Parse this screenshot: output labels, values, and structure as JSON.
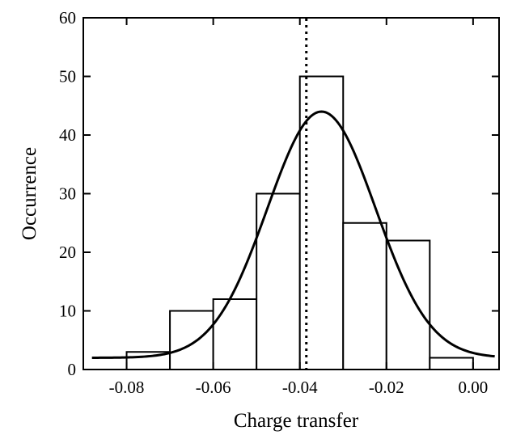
{
  "chart_data": {
    "type": "bar",
    "title": "",
    "xlabel": "Charge transfer",
    "ylabel": "Occurrence",
    "xlim": [
      -0.09,
      0.006
    ],
    "ylim": [
      0,
      60
    ],
    "grid": false,
    "legend": "none",
    "x_ticks": [
      {
        "value": -0.08,
        "label": "-0.08"
      },
      {
        "value": -0.06,
        "label": "-0.06"
      },
      {
        "value": -0.04,
        "label": "-0.04"
      },
      {
        "value": -0.02,
        "label": "-0.02"
      },
      {
        "value": 0.0,
        "label": "0.00"
      }
    ],
    "y_ticks": [
      {
        "value": 0,
        "label": "0"
      },
      {
        "value": 10,
        "label": "10"
      },
      {
        "value": 20,
        "label": "20"
      },
      {
        "value": 30,
        "label": "30"
      },
      {
        "value": 40,
        "label": "40"
      },
      {
        "value": 50,
        "label": "50"
      },
      {
        "value": 60,
        "label": "60"
      }
    ],
    "bins": [
      {
        "x0": -0.08,
        "x1": -0.07,
        "count": 3
      },
      {
        "x0": -0.07,
        "x1": -0.06,
        "count": 10
      },
      {
        "x0": -0.06,
        "x1": -0.05,
        "count": 12
      },
      {
        "x0": -0.05,
        "x1": -0.04,
        "count": 30
      },
      {
        "x0": -0.04,
        "x1": -0.03,
        "count": 50
      },
      {
        "x0": -0.03,
        "x1": -0.02,
        "count": 25
      },
      {
        "x0": -0.02,
        "x1": -0.01,
        "count": 22
      },
      {
        "x0": -0.01,
        "x1": 0.0,
        "count": 2
      }
    ],
    "fit_curve": {
      "type": "gaussian",
      "amplitude": 42,
      "center": -0.035,
      "sigma": 0.0125,
      "baseline": 2,
      "x_range": [
        -0.088,
        0.005
      ]
    },
    "reference_line": {
      "x": -0.0385,
      "style": "dotted"
    },
    "colors": {
      "stroke": "#000000",
      "bar_fill": "#ffffff"
    }
  }
}
